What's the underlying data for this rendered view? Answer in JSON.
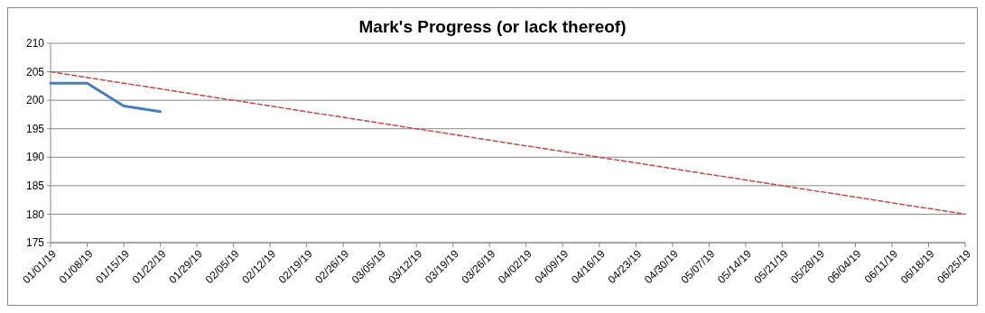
{
  "chart_data": {
    "type": "line",
    "title": "Mark's Progress (or lack thereof)",
    "categories": [
      "01/01/19",
      "01/08/19",
      "01/15/19",
      "01/22/19",
      "01/29/19",
      "02/05/19",
      "02/12/19",
      "02/19/19",
      "02/26/19",
      "03/05/19",
      "03/12/19",
      "03/19/19",
      "03/26/19",
      "04/02/19",
      "04/09/19",
      "04/16/19",
      "04/23/19",
      "04/30/19",
      "05/07/19",
      "05/14/19",
      "05/21/19",
      "05/28/19",
      "06/04/19",
      "06/11/19",
      "06/18/19",
      "06/25/19"
    ],
    "series": [
      {
        "color": "#4a7ebb",
        "line_style": "solid",
        "values": [
          203,
          203,
          199,
          198,
          null,
          null,
          null,
          null,
          null,
          null,
          null,
          null,
          null,
          null,
          null,
          null,
          null,
          null,
          null,
          null,
          null,
          null,
          null,
          null,
          null,
          null
        ]
      },
      {
        "color": "#be4b48",
        "line_style": "dashed",
        "values": [
          205,
          204,
          203,
          202,
          201,
          200,
          199,
          198,
          197,
          196,
          195,
          194,
          193,
          192,
          191,
          190,
          189,
          188,
          187,
          186,
          185,
          184,
          183,
          182,
          181,
          180
        ]
      }
    ],
    "ylim": [
      175,
      210
    ],
    "yticks": [
      175,
      180,
      185,
      190,
      195,
      200,
      205,
      210
    ],
    "grid": "y",
    "marker": "none"
  }
}
